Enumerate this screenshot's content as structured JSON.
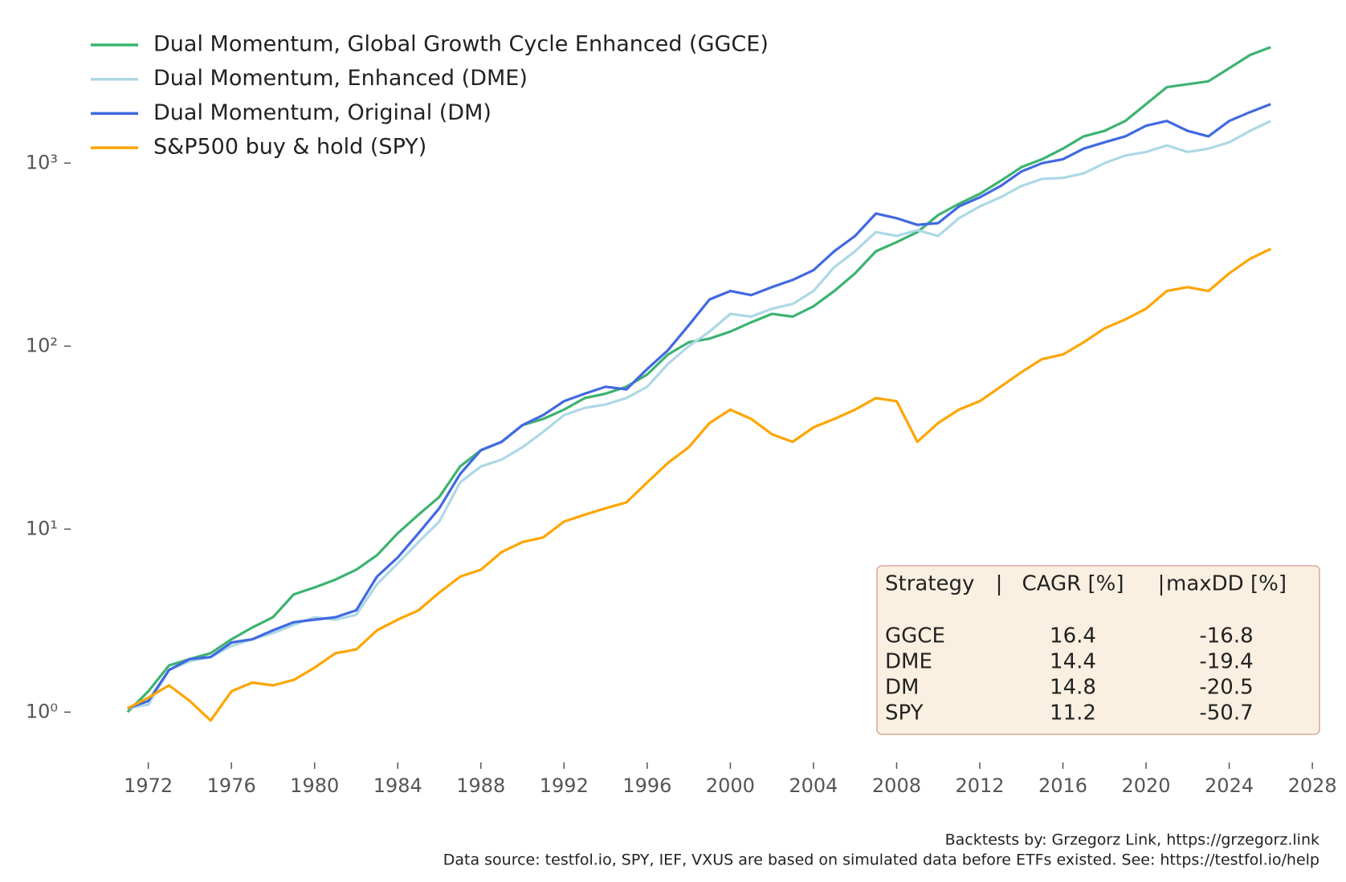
{
  "chart_data": {
    "type": "line",
    "log_y": true,
    "grid": false,
    "legend": "upper left",
    "x": [
      1971,
      1972,
      1973,
      1974,
      1975,
      1976,
      1977,
      1978,
      1979,
      1980,
      1981,
      1982,
      1983,
      1984,
      1985,
      1986,
      1987,
      1988,
      1989,
      1990,
      1991,
      1992,
      1993,
      1994,
      1995,
      1996,
      1997,
      1998,
      1999,
      2000,
      2001,
      2002,
      2003,
      2004,
      2005,
      2006,
      2007,
      2008,
      2009,
      2010,
      2011,
      2012,
      2013,
      2014,
      2015,
      2016,
      2017,
      2018,
      2019,
      2020,
      2021,
      2022,
      2023,
      2024,
      2025,
      2026
    ],
    "series": [
      {
        "name": "Dual Momentum, Global Growth Cycle Enhanced (GGCE)",
        "color": "#3cb371",
        "values": [
          1.0,
          1.3,
          1.8,
          1.95,
          2.1,
          2.5,
          2.9,
          3.3,
          4.4,
          4.8,
          5.3,
          6.0,
          7.2,
          9.5,
          12,
          15,
          22,
          27,
          30,
          37,
          40,
          45,
          52,
          55,
          60,
          70,
          90,
          105,
          110,
          120,
          135,
          150,
          145,
          165,
          200,
          250,
          330,
          370,
          420,
          520,
          600,
          680,
          800,
          950,
          1050,
          1200,
          1400,
          1500,
          1700,
          2100,
          2600,
          2700,
          2800,
          3300,
          3900,
          4300
        ]
      },
      {
        "name": "Dual Momentum, Enhanced (DME)",
        "color": "#add8e6",
        "values": [
          1.05,
          1.1,
          1.7,
          1.9,
          2.0,
          2.3,
          2.5,
          2.7,
          3.0,
          3.3,
          3.2,
          3.4,
          5.0,
          6.5,
          8.5,
          11,
          18,
          22,
          24,
          28,
          34,
          42,
          46,
          48,
          52,
          60,
          80,
          100,
          120,
          150,
          145,
          160,
          170,
          200,
          270,
          330,
          420,
          400,
          430,
          400,
          500,
          580,
          650,
          750,
          820,
          830,
          880,
          1000,
          1100,
          1150,
          1250,
          1150,
          1200,
          1300,
          1500,
          1700
        ]
      },
      {
        "name": "Dual Momentum, Original (DM)",
        "color": "#4169e1",
        "values": [
          1.05,
          1.15,
          1.7,
          1.95,
          2.0,
          2.4,
          2.5,
          2.8,
          3.1,
          3.2,
          3.3,
          3.6,
          5.5,
          7.0,
          9.5,
          13,
          20,
          27,
          30,
          37,
          42,
          50,
          55,
          60,
          58,
          75,
          95,
          130,
          180,
          200,
          190,
          210,
          230,
          260,
          330,
          400,
          530,
          500,
          460,
          470,
          580,
          650,
          750,
          900,
          1000,
          1050,
          1200,
          1300,
          1400,
          1600,
          1700,
          1500,
          1400,
          1700,
          1900,
          2100
        ]
      },
      {
        "name": "S&P500 buy & hold (SPY)",
        "color": "#ffa500",
        "values": [
          1.05,
          1.2,
          1.4,
          1.15,
          0.9,
          1.3,
          1.45,
          1.4,
          1.5,
          1.75,
          2.1,
          2.2,
          2.8,
          3.2,
          3.6,
          4.5,
          5.5,
          6.0,
          7.5,
          8.5,
          9.0,
          11,
          12,
          13,
          14,
          18,
          23,
          28,
          38,
          45,
          40,
          33,
          30,
          36,
          40,
          45,
          52,
          50,
          30,
          38,
          45,
          50,
          60,
          72,
          85,
          90,
          105,
          125,
          140,
          160,
          200,
          210,
          200,
          250,
          300,
          340
        ]
      }
    ],
    "xlim": [
      1969,
      2029
    ],
    "xticks": [
      1972,
      1976,
      1980,
      1984,
      1988,
      1992,
      1996,
      2000,
      2004,
      2008,
      2012,
      2016,
      2020,
      2024,
      2028
    ],
    "ylim": [
      0.57,
      6300
    ],
    "yticks": [
      {
        "value": 1,
        "label": "10⁰"
      },
      {
        "value": 10,
        "label": "10¹"
      },
      {
        "value": 100,
        "label": "10²"
      },
      {
        "value": 1000,
        "label": "10³"
      }
    ],
    "table": {
      "header": [
        "Strategy",
        "|",
        "CAGR [%]",
        "|",
        "maxDD [%]"
      ],
      "rows": [
        [
          "GGCE",
          "16.4",
          "-16.8"
        ],
        [
          "DME",
          "14.4",
          "-19.4"
        ],
        [
          "DM",
          "14.8",
          "-20.5"
        ],
        [
          "SPY",
          "11.2",
          "-50.7"
        ]
      ]
    },
    "notes": [
      "Backtests by: Grzegorz Link, https://grzegorz.link",
      "Data source: testfol.io, SPY, IEF, VXUS are based on simulated data before ETFs existed. See: https://testfol.io/help"
    ]
  }
}
